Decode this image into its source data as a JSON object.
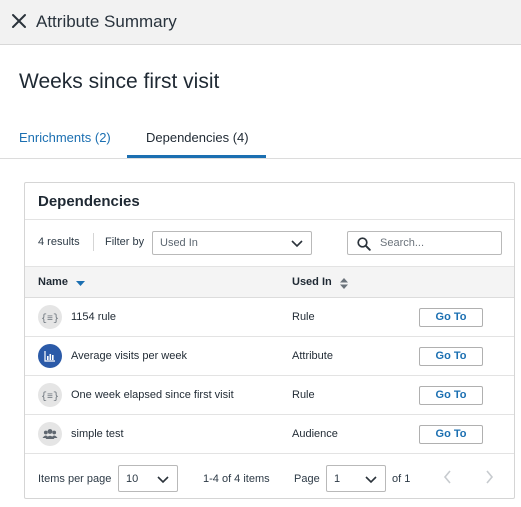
{
  "header": {
    "title": "Attribute Summary",
    "close_icon": "close-icon"
  },
  "page": {
    "title": "Weeks since first visit"
  },
  "tabs": [
    {
      "label": "Enrichments (2)",
      "active": false
    },
    {
      "label": "Dependencies (4)",
      "active": true
    }
  ],
  "panel": {
    "title": "Dependencies",
    "results_count": "4 results",
    "filter": {
      "label": "Filter by",
      "placeholder": "Used In"
    },
    "search": {
      "placeholder": "Search..."
    },
    "columns": {
      "name": "Name",
      "used_in": "Used In"
    },
    "rows": [
      {
        "icon": "rule-icon",
        "name": "1154 rule",
        "used_in": "Rule",
        "action": "Go To"
      },
      {
        "icon": "bar-chart-icon",
        "name": "Average visits per week",
        "used_in": "Attribute",
        "action": "Go To"
      },
      {
        "icon": "rule-icon",
        "name": "One week elapsed since first visit",
        "used_in": "Rule",
        "action": "Go To"
      },
      {
        "icon": "audience-icon",
        "name": "simple test",
        "used_in": "Audience",
        "action": "Go To"
      }
    ],
    "pagination": {
      "items_per_page_label": "Items per page",
      "items_per_page": "10",
      "range": "1-4 of 4 items",
      "page_label": "Page",
      "page": "1",
      "of_label": "of 1"
    }
  },
  "colors": {
    "accent": "#1b6fb1",
    "attribute_icon_bg": "#2b5aa8",
    "header_bg": "#f2f2f2"
  }
}
